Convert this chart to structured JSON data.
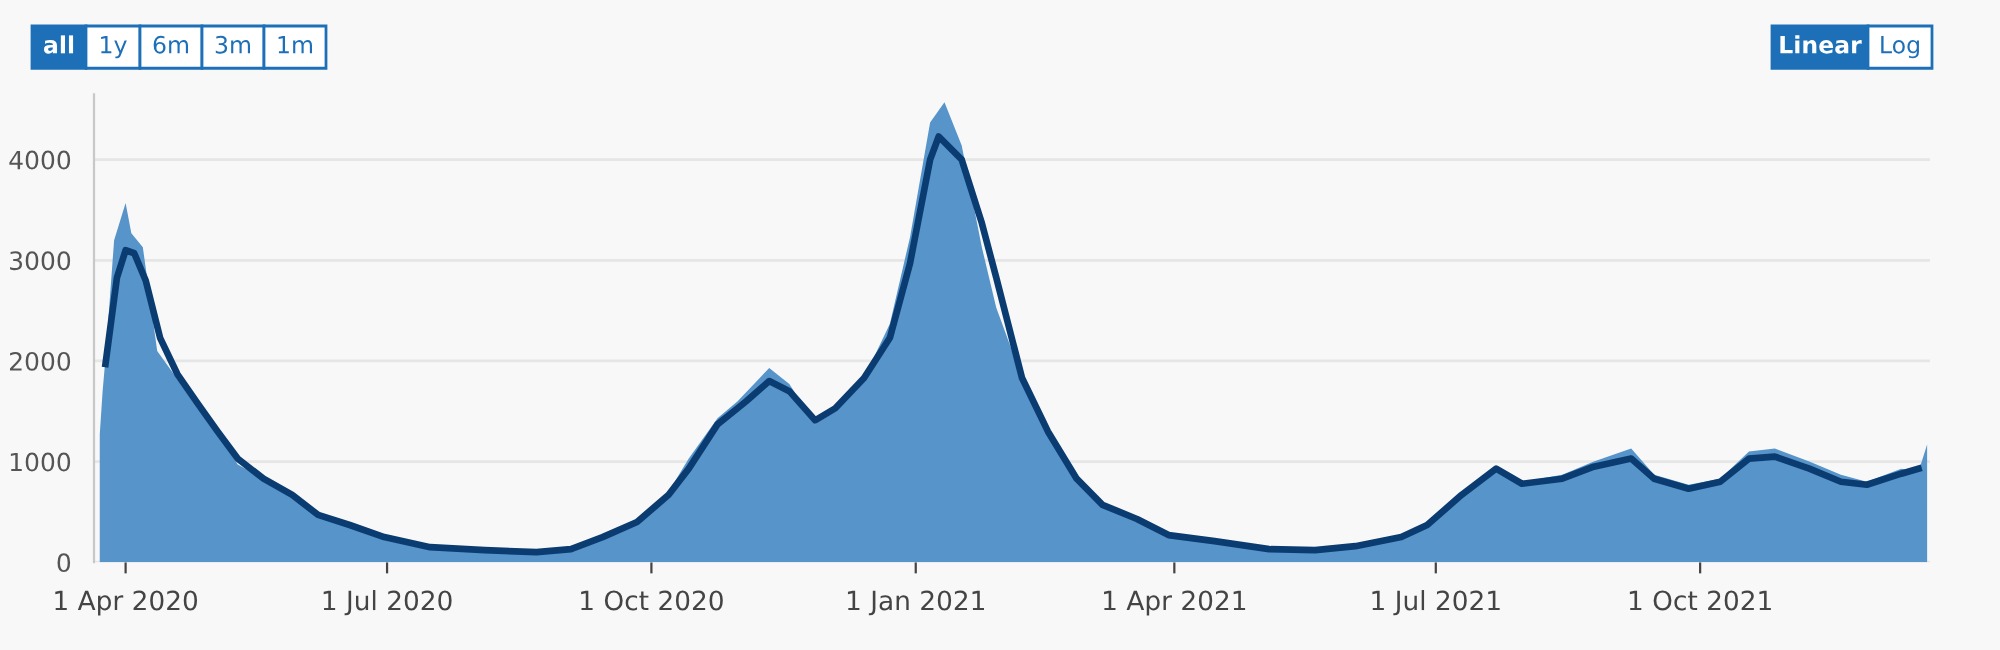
{
  "chart_data": {
    "type": "area",
    "annotations": [
      "all",
      "1y",
      "6m",
      "3m",
      "1m",
      "Linear",
      "Log"
    ],
    "xlim": [
      "2020-03-21",
      "2021-12-20"
    ],
    "xticks": [
      {
        "value": "2020-04-01",
        "label": "1 Apr 2020"
      },
      {
        "value": "2020-07-01",
        "label": "1 Jul 2020"
      },
      {
        "value": "2020-10-01",
        "label": "1 Oct 2020"
      },
      {
        "value": "2021-01-01",
        "label": "1 Jan 2021"
      },
      {
        "value": "2021-04-01",
        "label": "1 Apr 2021"
      },
      {
        "value": "2021-07-01",
        "label": "1 Jul 2021"
      },
      {
        "value": "2021-10-01",
        "label": "1 Oct 2021"
      }
    ],
    "ylim": [
      0,
      4650
    ],
    "yticks": [
      0,
      1000,
      2000,
      3000,
      4000
    ],
    "grid": "y",
    "series": [
      {
        "color": "#5694ca",
        "x": [
          "2020-03-23",
          "2020-03-24",
          "2020-03-25",
          "2020-03-28",
          "2020-04-01",
          "2020-04-03",
          "2020-04-07",
          "2020-04-12",
          "2020-04-17",
          "2020-04-26",
          "2020-05-03",
          "2020-05-10",
          "2020-05-19",
          "2020-05-29",
          "2020-06-07",
          "2020-06-18",
          "2020-06-30",
          "2020-07-16",
          "2020-08-04",
          "2020-08-22",
          "2020-09-03",
          "2020-09-14",
          "2020-09-26",
          "2020-10-07",
          "2020-10-14",
          "2020-10-24",
          "2020-10-31",
          "2020-11-11",
          "2020-11-18",
          "2020-11-27",
          "2020-12-04",
          "2020-12-14",
          "2020-12-23",
          "2020-12-30",
          "2021-01-06",
          "2021-01-11",
          "2021-01-17",
          "2021-01-24",
          "2021-01-29",
          "2021-02-07",
          "2021-02-16",
          "2021-02-26",
          "2021-03-07",
          "2021-03-19",
          "2021-03-30",
          "2021-04-15",
          "2021-05-04",
          "2021-05-20",
          "2021-06-03",
          "2021-06-19",
          "2021-06-28",
          "2021-07-10",
          "2021-07-22",
          "2021-07-31",
          "2021-08-14",
          "2021-08-25",
          "2021-09-07",
          "2021-09-15",
          "2021-09-27",
          "2021-10-08",
          "2021-10-18",
          "2021-10-27",
          "2021-11-08",
          "2021-11-19",
          "2021-11-28",
          "2021-12-10",
          "2021-12-16",
          "2021-12-19"
        ],
        "values": [
          1270,
          1700,
          2030,
          3200,
          3570,
          3270,
          3130,
          2100,
          1900,
          1530,
          1300,
          970,
          830,
          670,
          470,
          370,
          230,
          130,
          110,
          100,
          130,
          270,
          400,
          700,
          1030,
          1430,
          1600,
          1930,
          1770,
          1370,
          1500,
          1830,
          2370,
          3230,
          4370,
          4570,
          4140,
          3130,
          2530,
          1830,
          1300,
          830,
          570,
          430,
          270,
          210,
          130,
          130,
          160,
          270,
          400,
          700,
          930,
          800,
          870,
          1000,
          1130,
          870,
          770,
          830,
          1100,
          1130,
          1000,
          870,
          800,
          930,
          900,
          1170
        ]
      },
      {
        "type": "line",
        "color": "#0b3c71",
        "x": [
          "2020-03-25",
          "2020-03-29",
          "2020-04-01",
          "2020-04-04",
          "2020-04-08",
          "2020-04-13",
          "2020-04-19",
          "2020-04-26",
          "2020-05-03",
          "2020-05-10",
          "2020-05-19",
          "2020-05-29",
          "2020-06-07",
          "2020-06-18",
          "2020-06-30",
          "2020-07-16",
          "2020-08-04",
          "2020-08-22",
          "2020-09-03",
          "2020-09-14",
          "2020-09-26",
          "2020-10-07",
          "2020-10-14",
          "2020-10-24",
          "2020-10-31",
          "2020-11-03",
          "2020-11-11",
          "2020-11-18",
          "2020-11-27",
          "2020-12-04",
          "2020-12-14",
          "2020-12-23",
          "2020-12-30",
          "2021-01-06",
          "2021-01-09",
          "2021-01-17",
          "2021-01-24",
          "2021-01-29",
          "2021-02-07",
          "2021-02-16",
          "2021-02-26",
          "2021-03-07",
          "2021-03-19",
          "2021-03-30",
          "2021-04-15",
          "2021-05-04",
          "2021-05-20",
          "2021-06-03",
          "2021-06-19",
          "2021-06-28",
          "2021-07-10",
          "2021-07-22",
          "2021-07-31",
          "2021-08-14",
          "2021-08-25",
          "2021-09-07",
          "2021-09-15",
          "2021-09-27",
          "2021-10-08",
          "2021-10-18",
          "2021-10-27",
          "2021-11-08",
          "2021-11-19",
          "2021-11-28",
          "2021-12-10",
          "2021-12-16"
        ],
        "values": [
          1970,
          2830,
          3100,
          3070,
          2800,
          2230,
          1870,
          1580,
          1300,
          1030,
          830,
          670,
          470,
          370,
          250,
          150,
          120,
          100,
          130,
          250,
          400,
          670,
          930,
          1370,
          1530,
          1600,
          1800,
          1700,
          1410,
          1530,
          1830,
          2230,
          2970,
          4000,
          4230,
          4000,
          3370,
          2830,
          1830,
          1300,
          830,
          570,
          430,
          270,
          210,
          130,
          120,
          160,
          250,
          370,
          670,
          930,
          780,
          830,
          950,
          1030,
          830,
          730,
          800,
          1030,
          1050,
          930,
          800,
          770,
          880,
          930
        ]
      }
    ]
  }
}
